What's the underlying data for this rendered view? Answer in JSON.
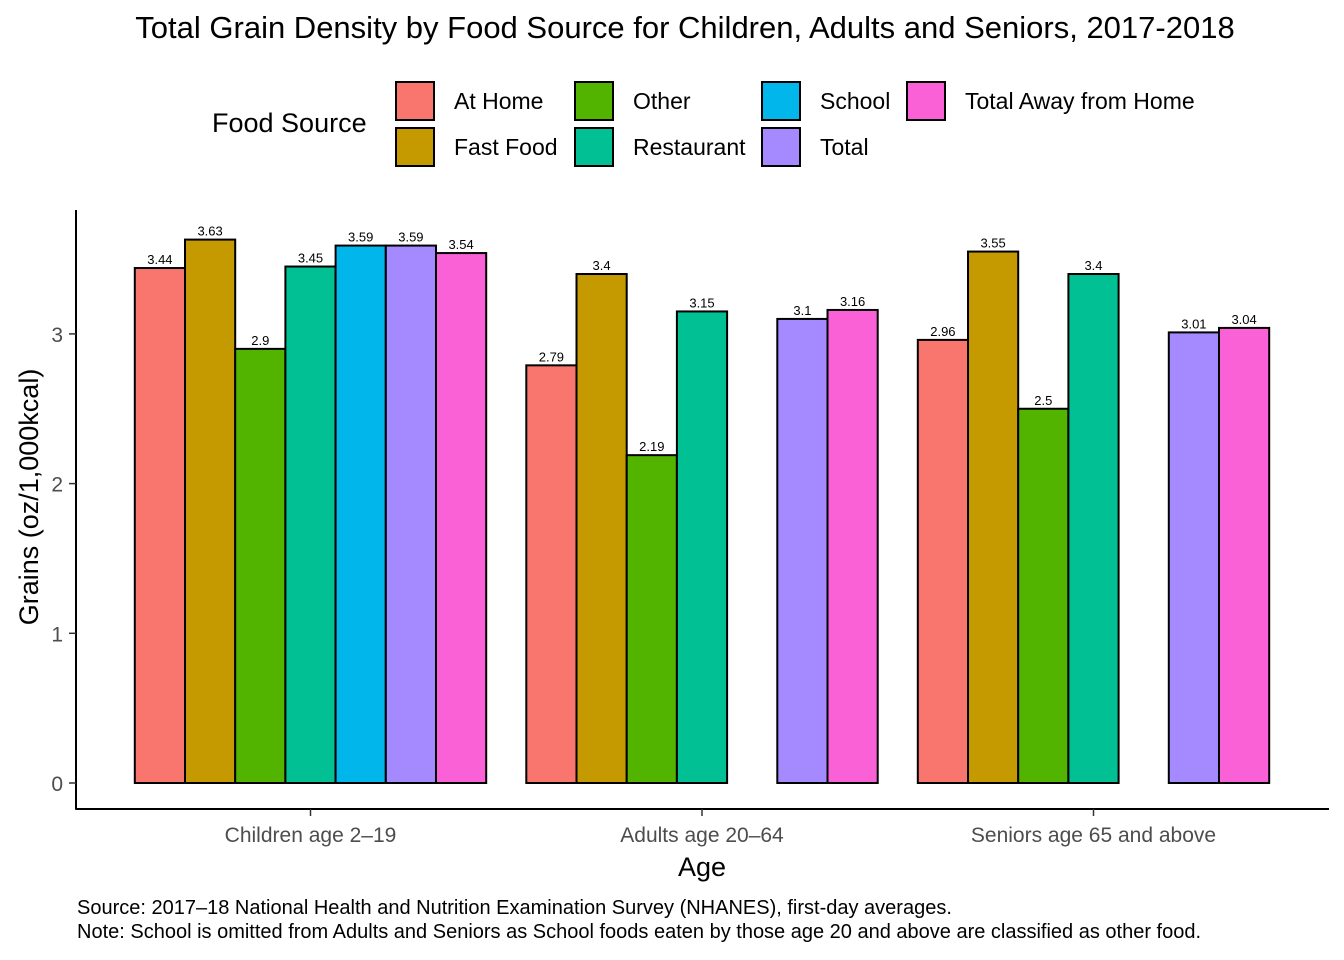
{
  "chart_data": {
    "type": "bar",
    "title": "Total Grain Density by Food Source for Children, Adults and Seniors, 2017-2018",
    "xlabel": "Age",
    "ylabel": "Grains (oz/1,000kcal)",
    "ylim": [
      0,
      3.8
    ],
    "yticks": [
      0,
      1,
      2,
      3
    ],
    "grid": false,
    "legend": {
      "title": "Food Source",
      "placement": "top"
    },
    "categories": [
      "Children age 2–19",
      "Adults age 20–64",
      "Seniors age 65 and above"
    ],
    "series": [
      {
        "name": "At Home",
        "color": "#F8766D",
        "values": [
          3.44,
          2.79,
          2.96
        ]
      },
      {
        "name": "Fast Food",
        "color": "#C49A00",
        "values": [
          3.63,
          3.4,
          3.55
        ]
      },
      {
        "name": "Other",
        "color": "#53B400",
        "values": [
          2.9,
          2.19,
          2.5
        ]
      },
      {
        "name": "Restaurant",
        "color": "#00C094",
        "values": [
          3.45,
          3.15,
          3.4
        ]
      },
      {
        "name": "School",
        "color": "#00B6EB",
        "values": [
          3.59,
          null,
          null
        ]
      },
      {
        "name": "Total",
        "color": "#A58AFF",
        "values": [
          3.59,
          3.1,
          3.01
        ]
      },
      {
        "name": "Total Away from Home",
        "color": "#FB61D7",
        "values": [
          3.54,
          3.16,
          3.04
        ]
      }
    ]
  },
  "footnotes": {
    "source": "Source: 2017–18 National Health and Nutrition Examination Survey (NHANES), first-day averages.",
    "note": "Note: School is omitted from Adults and Seniors as School foods eaten by those age 20 and above are classified as other food."
  }
}
